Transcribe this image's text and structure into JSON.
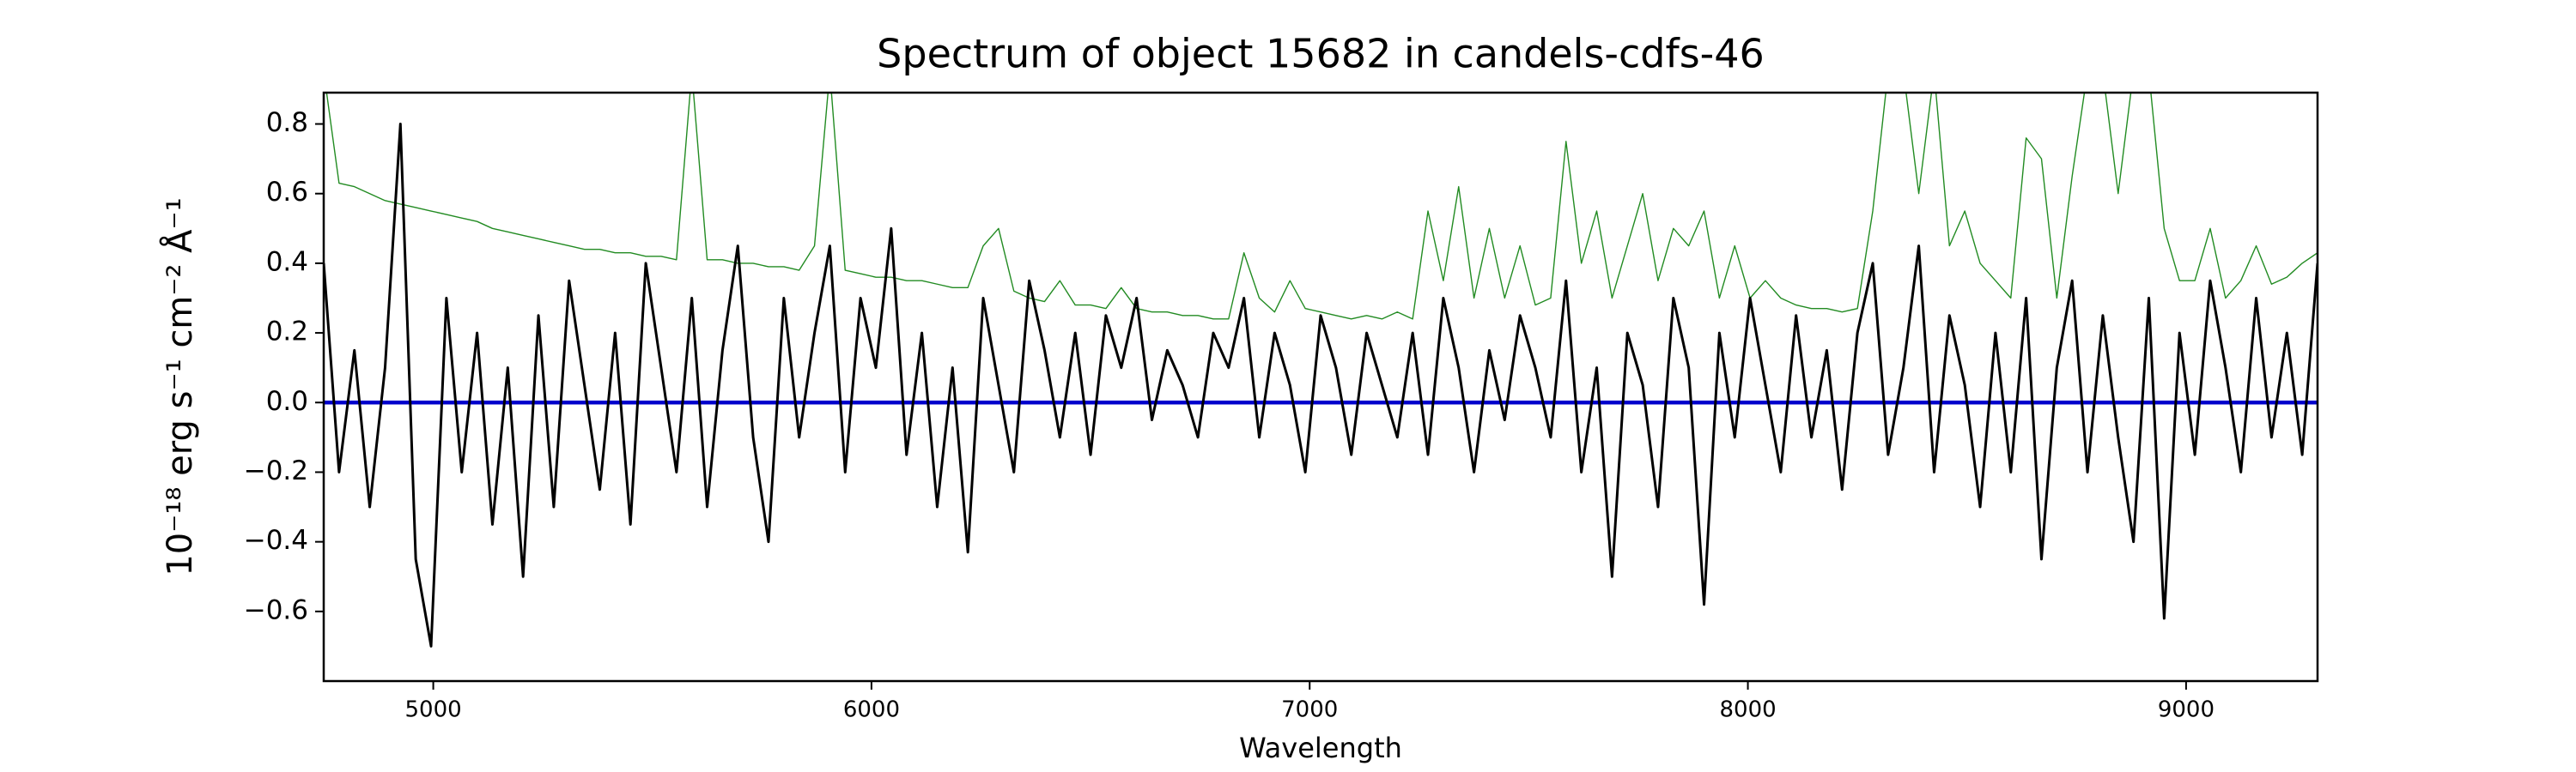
{
  "chart_data": {
    "type": "line",
    "title": "Spectrum of object 15682 in candels-cdfs-46",
    "x_label": "Wavelength",
    "y_label": "10⁻¹⁸ erg s⁻¹ cm⁻² Å⁻¹",
    "xlim": [
      4750,
      9300
    ],
    "ylim": [
      -0.8,
      0.89
    ],
    "xticks": [
      5000,
      6000,
      7000,
      8000,
      9000
    ],
    "yticks": [
      {
        "value": -0.6,
        "label": "−0.6"
      },
      {
        "value": -0.4,
        "label": "−0.4"
      },
      {
        "value": -0.2,
        "label": "−0.2"
      },
      {
        "value": 0,
        "label": "0.0"
      },
      0.2,
      0.4,
      0.6,
      0.8
    ],
    "grid": false,
    "series": [
      {
        "color": "#228b22",
        "width": 1.4,
        "x": [
          4750,
          4785,
          4820,
          4855,
          4890,
          4925,
          4960,
          4995,
          5030,
          5065,
          5100,
          5135,
          5170,
          5205,
          5240,
          5275,
          5310,
          5345,
          5380,
          5415,
          5450,
          5485,
          5520,
          5555,
          5590,
          5625,
          5660,
          5695,
          5730,
          5765,
          5800,
          5835,
          5870,
          5905,
          5940,
          5975,
          6010,
          6045,
          6080,
          6115,
          6150,
          6185,
          6220,
          6255,
          6290,
          6325,
          6360,
          6395,
          6430,
          6465,
          6500,
          6535,
          6570,
          6605,
          6640,
          6675,
          6710,
          6745,
          6780,
          6815,
          6850,
          6885,
          6920,
          6955,
          6990,
          7025,
          7060,
          7095,
          7130,
          7165,
          7200,
          7235,
          7270,
          7305,
          7340,
          7375,
          7410,
          7445,
          7480,
          7515,
          7550,
          7585,
          7620,
          7655,
          7690,
          7725,
          7760,
          7795,
          7830,
          7865,
          7900,
          7935,
          7970,
          8005,
          8040,
          8075,
          8110,
          8145,
          8180,
          8215,
          8250,
          8285,
          8320,
          8355,
          8390,
          8425,
          8460,
          8495,
          8530,
          8565,
          8600,
          8635,
          8670,
          8705,
          8740,
          8775,
          8810,
          8845,
          8880,
          8915,
          8950,
          8985,
          9020,
          9055,
          9090,
          9125,
          9160,
          9195,
          9230,
          9265,
          9300
        ],
        "values": [
          0.95,
          0.63,
          0.62,
          0.6,
          0.58,
          0.57,
          0.56,
          0.55,
          0.54,
          0.53,
          0.52,
          0.5,
          0.49,
          0.48,
          0.47,
          0.46,
          0.45,
          0.44,
          0.44,
          0.43,
          0.43,
          0.42,
          0.42,
          0.41,
          0.95,
          0.41,
          0.41,
          0.4,
          0.4,
          0.39,
          0.39,
          0.38,
          0.45,
          0.95,
          0.38,
          0.37,
          0.36,
          0.36,
          0.35,
          0.35,
          0.34,
          0.33,
          0.33,
          0.45,
          0.5,
          0.32,
          0.3,
          0.29,
          0.35,
          0.28,
          0.28,
          0.27,
          0.33,
          0.27,
          0.26,
          0.26,
          0.25,
          0.25,
          0.24,
          0.24,
          0.43,
          0.3,
          0.26,
          0.35,
          0.27,
          0.26,
          0.25,
          0.24,
          0.25,
          0.24,
          0.26,
          0.24,
          0.55,
          0.35,
          0.62,
          0.3,
          0.5,
          0.3,
          0.45,
          0.28,
          0.3,
          0.75,
          0.4,
          0.55,
          0.3,
          0.45,
          0.6,
          0.35,
          0.5,
          0.45,
          0.55,
          0.3,
          0.45,
          0.3,
          0.35,
          0.3,
          0.28,
          0.27,
          0.27,
          0.26,
          0.27,
          0.55,
          0.95,
          0.95,
          0.6,
          0.95,
          0.45,
          0.55,
          0.4,
          0.35,
          0.3,
          0.76,
          0.7,
          0.3,
          0.65,
          0.95,
          0.95,
          0.6,
          0.95,
          0.95,
          0.5,
          0.35,
          0.35,
          0.5,
          0.3,
          0.35,
          0.45,
          0.34,
          0.36,
          0.4,
          0.43
        ]
      },
      {
        "color": "#0000cc",
        "width": 4.5,
        "x": [
          4750,
          9300
        ],
        "values": [
          0,
          0
        ]
      },
      {
        "color": "#000000",
        "width": 3,
        "x": [
          4750,
          4785,
          4820,
          4855,
          4890,
          4925,
          4960,
          4995,
          5030,
          5065,
          5100,
          5135,
          5170,
          5205,
          5240,
          5275,
          5310,
          5345,
          5380,
          5415,
          5450,
          5485,
          5520,
          5555,
          5590,
          5625,
          5660,
          5695,
          5730,
          5765,
          5800,
          5835,
          5870,
          5905,
          5940,
          5975,
          6010,
          6045,
          6080,
          6115,
          6150,
          6185,
          6220,
          6255,
          6290,
          6325,
          6360,
          6395,
          6430,
          6465,
          6500,
          6535,
          6570,
          6605,
          6640,
          6675,
          6710,
          6745,
          6780,
          6815,
          6850,
          6885,
          6920,
          6955,
          6990,
          7025,
          7060,
          7095,
          7130,
          7165,
          7200,
          7235,
          7270,
          7305,
          7340,
          7375,
          7410,
          7445,
          7480,
          7515,
          7550,
          7585,
          7620,
          7655,
          7690,
          7725,
          7760,
          7795,
          7830,
          7865,
          7900,
          7935,
          7970,
          8005,
          8040,
          8075,
          8110,
          8145,
          8180,
          8215,
          8250,
          8285,
          8320,
          8355,
          8390,
          8425,
          8460,
          8495,
          8530,
          8565,
          8600,
          8635,
          8670,
          8705,
          8740,
          8775,
          8810,
          8845,
          8880,
          8915,
          8950,
          8985,
          9020,
          9055,
          9090,
          9125,
          9160,
          9195,
          9230,
          9265,
          9300
        ],
        "values": [
          0.4,
          -0.2,
          0.15,
          -0.3,
          0.1,
          0.8,
          -0.45,
          -0.7,
          0.3,
          -0.2,
          0.2,
          -0.35,
          0.1,
          -0.5,
          0.25,
          -0.3,
          0.35,
          0.05,
          -0.25,
          0.2,
          -0.35,
          0.4,
          0.1,
          -0.2,
          0.3,
          -0.3,
          0.15,
          0.45,
          -0.1,
          -0.4,
          0.3,
          -0.1,
          0.2,
          0.45,
          -0.2,
          0.3,
          0.1,
          0.5,
          -0.15,
          0.2,
          -0.3,
          0.1,
          -0.43,
          0.3,
          0.05,
          -0.2,
          0.35,
          0.15,
          -0.1,
          0.2,
          -0.15,
          0.25,
          0.1,
          0.3,
          -0.05,
          0.15,
          0.05,
          -0.1,
          0.2,
          0.1,
          0.3,
          -0.1,
          0.2,
          0.05,
          -0.2,
          0.25,
          0.1,
          -0.15,
          0.2,
          0.05,
          -0.1,
          0.2,
          -0.15,
          0.3,
          0.1,
          -0.2,
          0.15,
          -0.05,
          0.25,
          0.1,
          -0.1,
          0.35,
          -0.2,
          0.1,
          -0.5,
          0.2,
          0.05,
          -0.3,
          0.3,
          0.1,
          -0.58,
          0.2,
          -0.1,
          0.3,
          0.05,
          -0.2,
          0.25,
          -0.1,
          0.15,
          -0.25,
          0.2,
          0.4,
          -0.15,
          0.1,
          0.45,
          -0.2,
          0.25,
          0.05,
          -0.3,
          0.2,
          -0.2,
          0.3,
          -0.45,
          0.1,
          0.35,
          -0.2,
          0.25,
          -0.1,
          -0.4,
          0.3,
          -0.62,
          0.2,
          -0.15,
          0.35,
          0.1,
          -0.2,
          0.3,
          -0.1,
          0.2,
          -0.15,
          0.4
        ]
      }
    ]
  }
}
